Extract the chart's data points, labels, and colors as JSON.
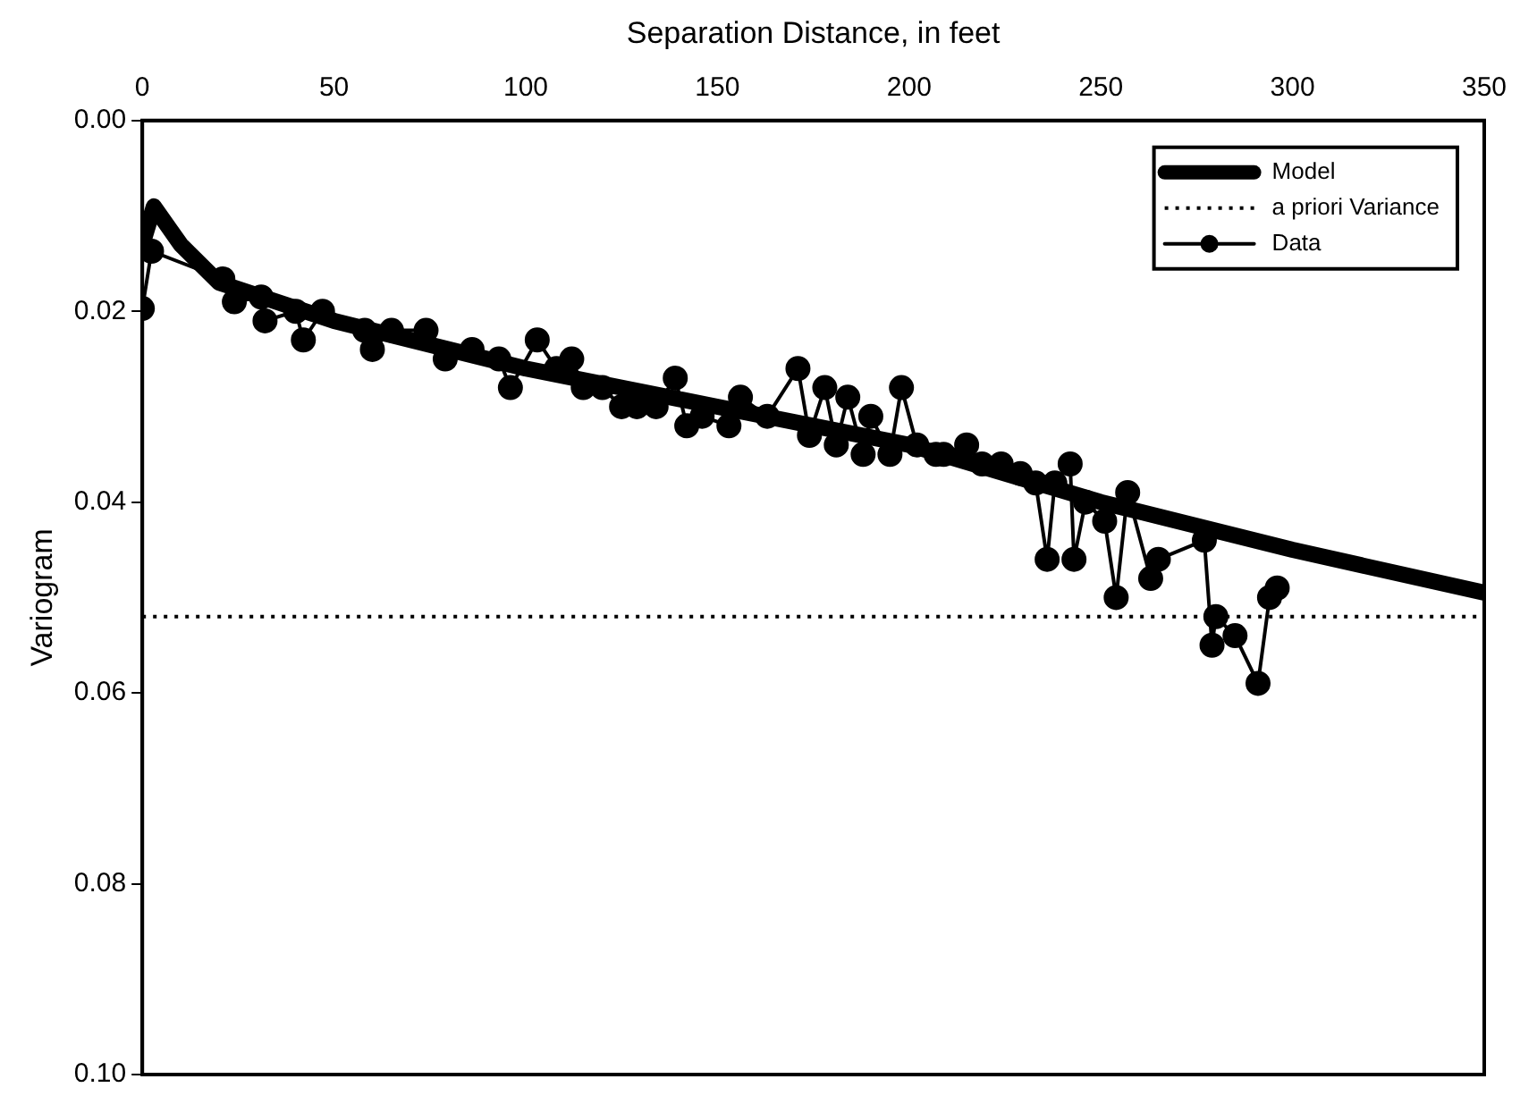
{
  "chart_data": {
    "type": "line",
    "xlabel": "Separation Distance, in feet",
    "ylabel": "Variogram",
    "xlim": [
      0,
      350
    ],
    "xticks": [
      0,
      50,
      100,
      150,
      200,
      250,
      300,
      350
    ],
    "ylim": [
      0.1,
      0
    ],
    "yticks": [
      {
        "value": 0,
        "label": "0.00"
      },
      {
        "value": 0.02,
        "label": "0.02"
      },
      {
        "value": 0.04,
        "label": "0.04"
      },
      {
        "value": 0.06,
        "label": "0.06"
      },
      {
        "value": 0.08,
        "label": "0.08"
      },
      {
        "value": 0.1,
        "label": "0.10"
      }
    ],
    "grid": false,
    "legend": "top right",
    "series": [
      {
        "name": "Model",
        "color": "#000000",
        "marker": "none",
        "line_style": "solid",
        "x": [
          0,
          3,
          10,
          20,
          50,
          100,
          150,
          200,
          250,
          300,
          350
        ],
        "values": [
          0.013,
          0.009,
          0.013,
          0.017,
          0.021,
          0.026,
          0.03,
          0.034,
          0.04,
          0.045,
          0.0495
        ]
      },
      {
        "name": "a priori Variance",
        "color": "#000000",
        "marker": "none",
        "line_style": "dotted",
        "x": [
          0,
          350
        ],
        "values": [
          0.052,
          0.052
        ]
      },
      {
        "name": "Data",
        "color": "#000000",
        "marker": "circle",
        "line_style": "solid",
        "x": [
          0,
          2.4,
          21,
          24,
          31,
          32,
          40,
          42,
          47,
          58,
          60,
          65,
          74,
          79,
          86,
          93,
          96,
          103,
          108,
          112,
          115,
          120,
          125,
          129,
          134,
          139,
          142,
          146,
          153,
          156,
          163,
          171,
          174,
          178,
          181,
          184,
          188,
          190,
          195,
          198,
          202,
          207,
          209,
          215,
          219,
          224,
          229,
          233,
          236,
          238,
          242,
          243,
          246,
          251,
          254,
          257,
          263,
          265,
          277,
          279,
          280,
          285,
          291,
          294,
          296
        ],
        "values": [
          0.0197,
          0.0137,
          0.0166,
          0.019,
          0.0185,
          0.021,
          0.02,
          0.023,
          0.02,
          0.022,
          0.024,
          0.022,
          0.022,
          0.025,
          0.024,
          0.025,
          0.028,
          0.023,
          0.026,
          0.025,
          0.028,
          0.028,
          0.03,
          0.03,
          0.03,
          0.027,
          0.032,
          0.031,
          0.032,
          0.029,
          0.031,
          0.026,
          0.033,
          0.028,
          0.034,
          0.029,
          0.035,
          0.031,
          0.035,
          0.028,
          0.034,
          0.035,
          0.035,
          0.034,
          0.036,
          0.036,
          0.037,
          0.038,
          0.046,
          0.038,
          0.036,
          0.046,
          0.04,
          0.042,
          0.05,
          0.039,
          0.048,
          0.046,
          0.044,
          0.055,
          0.052,
          0.054,
          0.059,
          0.05,
          0.049
        ]
      }
    ]
  }
}
